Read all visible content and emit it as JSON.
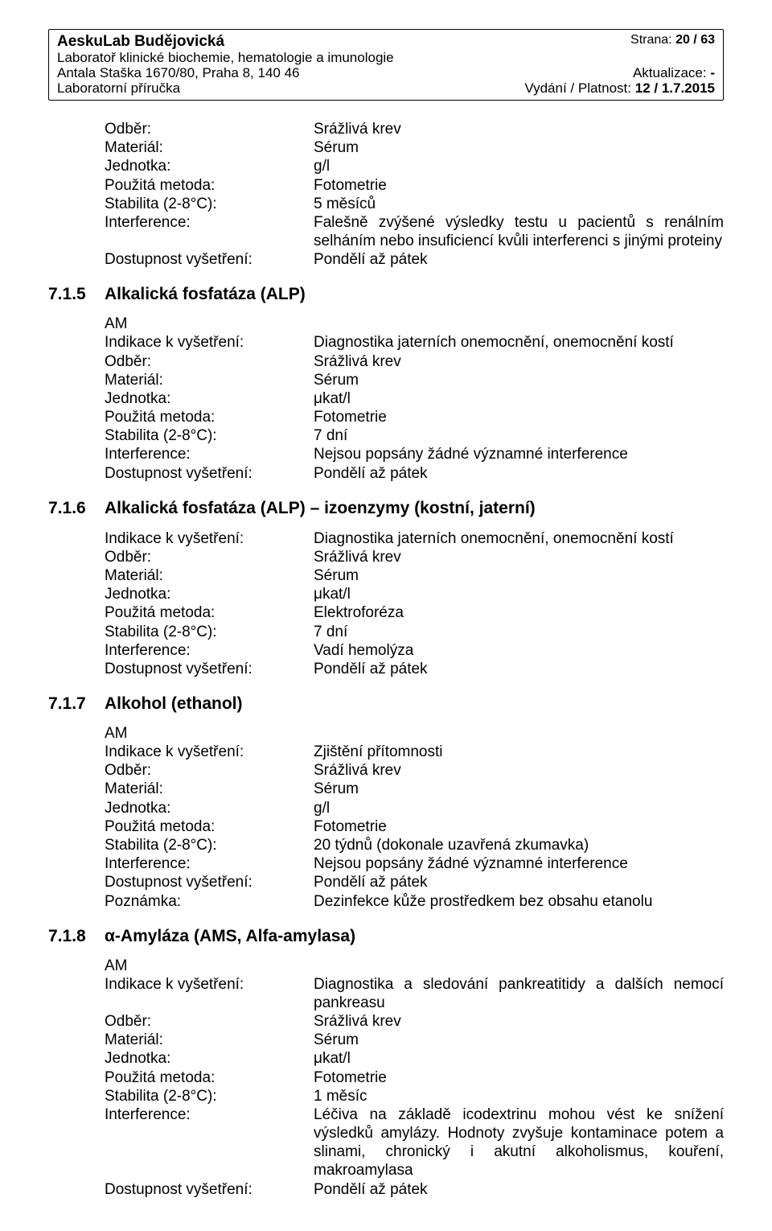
{
  "header": {
    "org": "AeskuLab Budějovická",
    "dept": "Laboratoř klinické biochemie, hematologie a imunologie",
    "addr": "Antala Staška 1670/80, Praha 8, 140 46",
    "manual": "Laboratorní příručka",
    "page_label": "Strana: ",
    "page_value": "20 / 63",
    "update_label": "Aktualizace: ",
    "update_value": "-",
    "edition_label": "Vydání / Platnost: ",
    "edition_value": "12 / 1.7.2015"
  },
  "labels": {
    "odber": "Odběr:",
    "material": "Materiál:",
    "jednotka": "Jednotka:",
    "metoda": "Použitá metoda:",
    "stabilita": "Stabilita (2-8°C):",
    "interference": "Interference:",
    "dostupnost": "Dostupnost vyšetření:",
    "indikace": "Indikace k vyšetření:",
    "poznamka": "Poznámka:",
    "am": "AM"
  },
  "s0": {
    "odber": "Srážlivá krev",
    "material": "Sérum",
    "jednotka": "g/l",
    "metoda": "Fotometrie",
    "stabilita": "5 měsíců",
    "interference": "Falešně zvýšené výsledky testu u pacientů s renálním selháním nebo insuficiencí kvůli interferenci s jinými proteiny",
    "dostupnost": "Pondělí až pátek"
  },
  "s1": {
    "num": "7.1.5",
    "title": "Alkalická fosfatáza (ALP)",
    "indikace": "Diagnostika jaterních onemocnění, onemocnění kostí",
    "odber": "Srážlivá krev",
    "material": "Sérum",
    "jednotka": "μkat/l",
    "metoda": "Fotometrie",
    "stabilita": "7 dní",
    "interference": "Nejsou popsány žádné významné interference",
    "dostupnost": "Pondělí až pátek"
  },
  "s2": {
    "num": "7.1.6",
    "title": "Alkalická fosfatáza (ALP) – izoenzymy (kostní, jaterní)",
    "indikace": "Diagnostika jaterních onemocnění, onemocnění kostí",
    "odber": "Srážlivá krev",
    "material": "Sérum",
    "jednotka": "μkat/l",
    "metoda": "Elektroforéza",
    "stabilita": "7 dní",
    "interference": "Vadí hemolýza",
    "dostupnost": "Pondělí až pátek"
  },
  "s3": {
    "num": "7.1.7",
    "title": "Alkohol (ethanol)",
    "indikace": "Zjištění přítomnosti",
    "odber": "Srážlivá krev",
    "material": "Sérum",
    "jednotka": "g/l",
    "metoda": "Fotometrie",
    "stabilita": "20 týdnů (dokonale uzavřená zkumavka)",
    "interference": "Nejsou popsány žádné významné interference",
    "dostupnost": "Pondělí až pátek",
    "poznamka": "Dezinfekce kůže prostředkem bez obsahu etanolu"
  },
  "s4": {
    "num": "7.1.8",
    "title": "α-Amyláza (AMS, Alfa-amylasa)",
    "indikace": "Diagnostika a sledování pankreatitidy a dalších nemocí pankreasu",
    "odber": "Srážlivá krev",
    "material": "Sérum",
    "jednotka": "μkat/l",
    "metoda": "Fotometrie",
    "stabilita": "1 měsíc",
    "interference": "Léčiva na základě icodextrinu mohou vést ke snížení výsledků amylázy. Hodnoty zvyšuje kontaminace potem a slinami, chronický i akutní alkoholismus, kouření, makroamylasa",
    "dostupnost": "Pondělí až pátek"
  }
}
